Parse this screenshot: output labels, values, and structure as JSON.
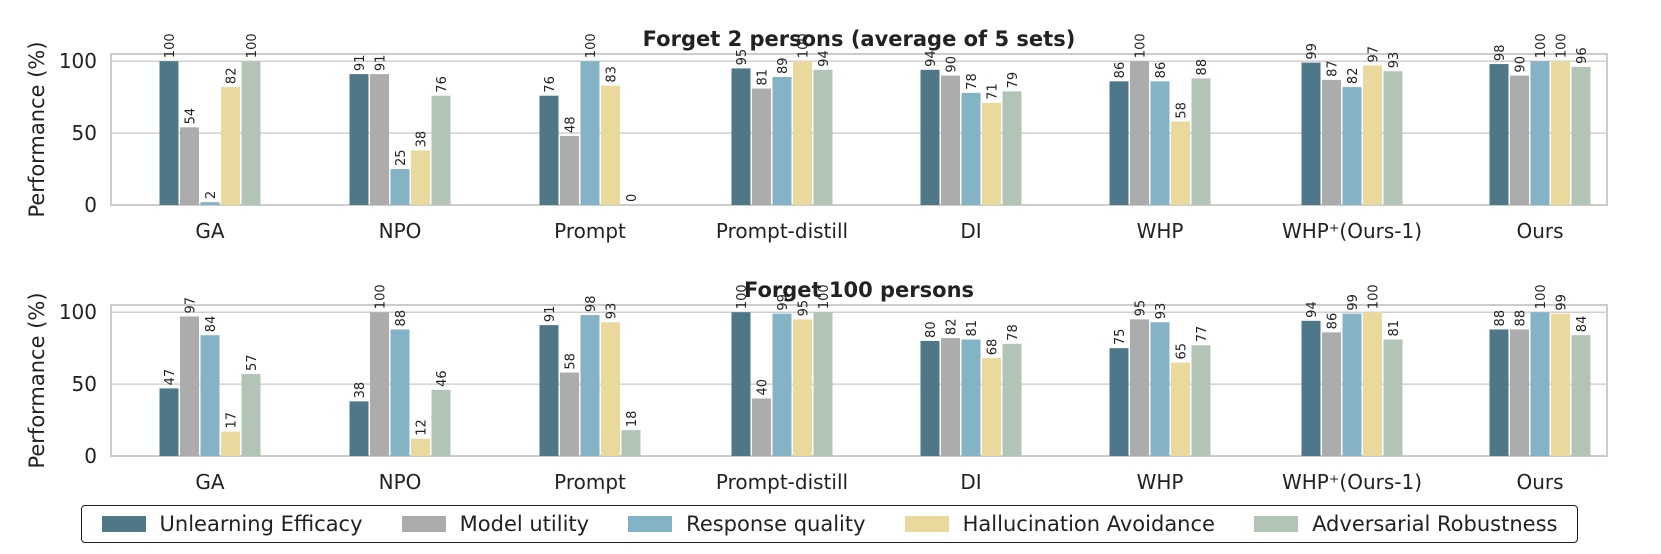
{
  "colors": {
    "series": [
      "#4e7788",
      "#acacad",
      "#84b3c5",
      "#e9d99c",
      "#b1c4b6"
    ],
    "grid": "#d0d0d0",
    "axis": "#cccccc",
    "text": "#222222"
  },
  "chart_data": [
    {
      "type": "bar",
      "title": "Forget 2 persons (average of 5 sets)",
      "ylabel": "Performance (%)",
      "ylim": [
        0,
        105
      ],
      "yticks": [
        0,
        50,
        100
      ],
      "grid": true,
      "categories": [
        "GA",
        "NPO",
        "Prompt",
        "Prompt-distill",
        "DI",
        "WHP",
        "WHP⁺(Ours-1)",
        "Ours"
      ],
      "series": [
        {
          "name": "Unlearning Efficacy",
          "values": [
            100,
            91,
            76,
            95,
            94,
            86,
            99,
            98
          ]
        },
        {
          "name": "Model utility",
          "values": [
            54,
            91,
            48,
            81,
            90,
            100,
            87,
            90
          ]
        },
        {
          "name": "Response quality",
          "values": [
            2,
            25,
            100,
            89,
            78,
            86,
            82,
            100
          ]
        },
        {
          "name": "Hallucination Avoidance",
          "values": [
            82,
            38,
            83,
            100,
            71,
            58,
            97,
            100
          ]
        },
        {
          "name": "Adversarial Robustness",
          "values": [
            100,
            76,
            0,
            94,
            79,
            88,
            93,
            96
          ]
        }
      ]
    },
    {
      "type": "bar",
      "title": "Forget 100 persons",
      "ylabel": "Performance (%)",
      "ylim": [
        0,
        105
      ],
      "yticks": [
        0,
        50,
        100
      ],
      "grid": true,
      "categories": [
        "GA",
        "NPO",
        "Prompt",
        "Prompt-distill",
        "DI",
        "WHP",
        "WHP⁺(Ours-1)",
        "Ours"
      ],
      "series": [
        {
          "name": "Unlearning Efficacy",
          "values": [
            47,
            38,
            91,
            100,
            80,
            75,
            94,
            88
          ]
        },
        {
          "name": "Model utility",
          "values": [
            97,
            100,
            58,
            40,
            82,
            95,
            86,
            88
          ]
        },
        {
          "name": "Response quality",
          "values": [
            84,
            88,
            98,
            99,
            81,
            93,
            99,
            100
          ]
        },
        {
          "name": "Hallucination Avoidance",
          "values": [
            17,
            12,
            93,
            95,
            68,
            65,
            100,
            99
          ]
        },
        {
          "name": "Adversarial Robustness",
          "values": [
            57,
            46,
            18,
            100,
            78,
            77,
            81,
            84
          ]
        }
      ]
    }
  ],
  "legend": {
    "items": [
      "Unlearning Efficacy",
      "Model utility",
      "Response quality",
      "Hallucination Avoidance",
      "Adversarial Robustness"
    ]
  }
}
